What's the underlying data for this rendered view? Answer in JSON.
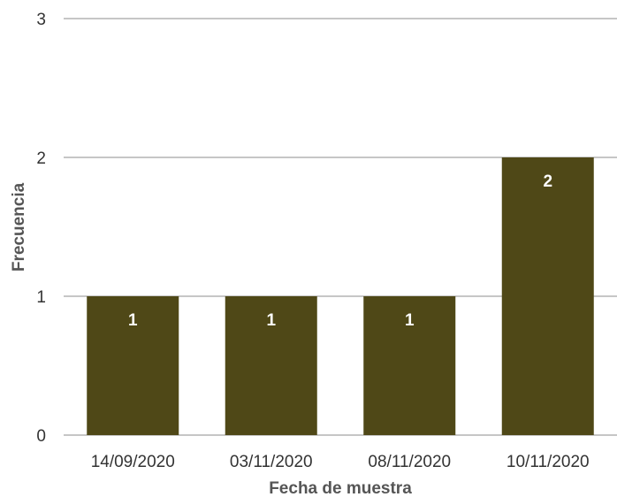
{
  "chart_data": {
    "type": "bar",
    "categories": [
      "14/09/2020",
      "03/11/2020",
      "08/11/2020",
      "10/11/2020"
    ],
    "values": [
      1,
      1,
      1,
      2
    ],
    "data_labels": [
      "1",
      "1",
      "1",
      "2"
    ],
    "title": "",
    "xlabel": "Fecha de muestra",
    "ylabel": "Frecuencia",
    "ylim": [
      0,
      3
    ],
    "yticks": [
      "0",
      "1",
      "2",
      "3"
    ],
    "grid": true,
    "legend": "none",
    "bar_color": "#4f4817"
  }
}
